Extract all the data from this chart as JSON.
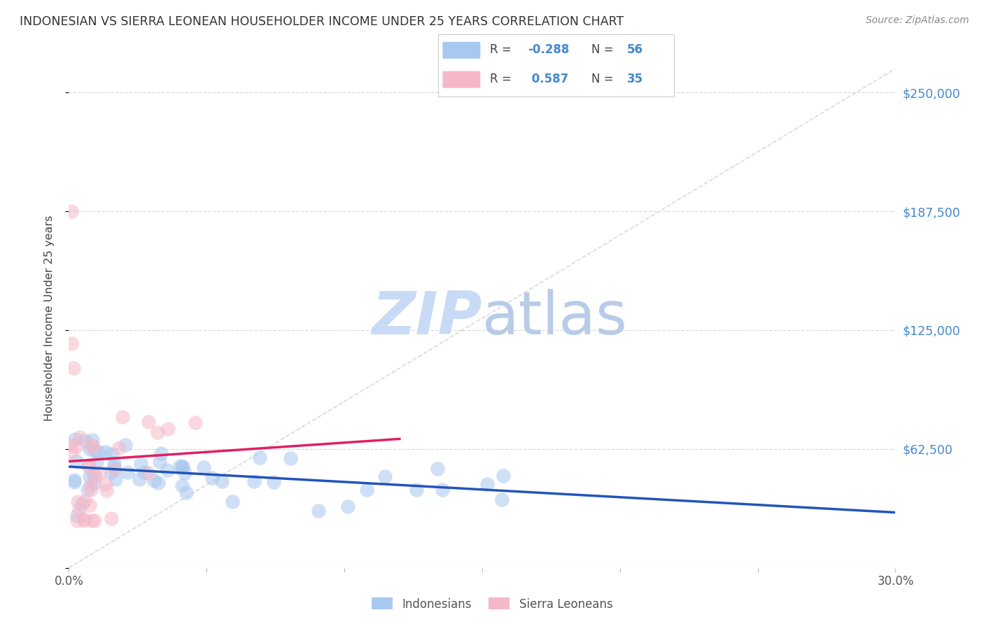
{
  "title": "INDONESIAN VS SIERRA LEONEAN HOUSEHOLDER INCOME UNDER 25 YEARS CORRELATION CHART",
  "source": "Source: ZipAtlas.com",
  "ylabel": "Householder Income Under 25 years",
  "xlim": [
    0.0,
    0.3
  ],
  "ylim": [
    0,
    262500
  ],
  "yticks": [
    0,
    62500,
    125000,
    187500,
    250000
  ],
  "ytick_labels": [
    "",
    "$62,500",
    "$125,000",
    "$187,500",
    "$250,000"
  ],
  "xticks": [
    0.0,
    0.05,
    0.1,
    0.15,
    0.2,
    0.25,
    0.3
  ],
  "xtick_labels": [
    "0.0%",
    "",
    "",
    "",
    "",
    "",
    "30.0%"
  ],
  "grid_color": "#d8d8d8",
  "background_color": "#ffffff",
  "indonesian_color": "#a8c8f0",
  "sierraleone_color": "#f5b8c8",
  "indonesian_line_color": "#2255bb",
  "sierraleone_line_color": "#e02060",
  "watermark_color": "#c8daf5",
  "ref_line_color": "#d0d0d0",
  "R_indonesian": -0.288,
  "N_indonesian": 56,
  "R_sierraleone": 0.587,
  "N_sierraleone": 35,
  "tick_label_color": "#4488cc",
  "axis_label_color": "#444444",
  "title_color": "#333333",
  "source_color": "#888888"
}
